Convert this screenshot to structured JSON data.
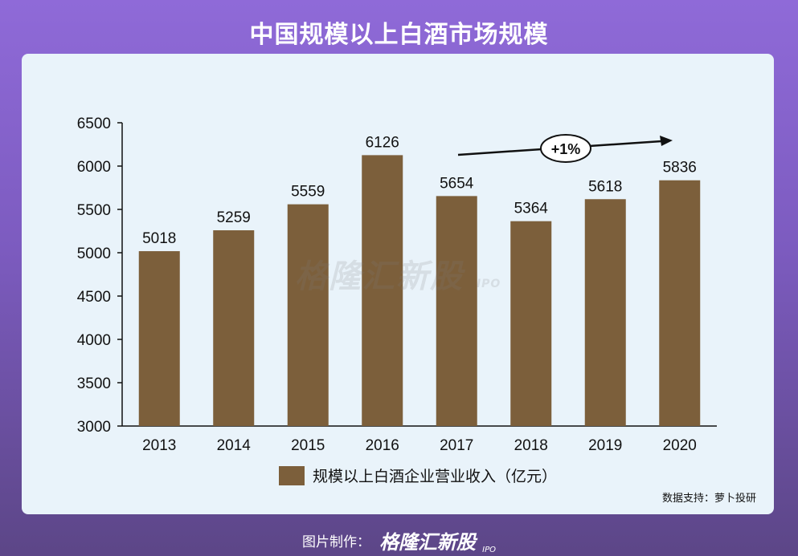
{
  "page": {
    "title": "中国规模以上白酒市场规模",
    "source": "数据支持：萝卜投研",
    "footer_label": "图片制作：",
    "brand": "格隆汇新股",
    "brand_sub": "IPO"
  },
  "chart_data": {
    "type": "bar",
    "categories": [
      "2013",
      "2014",
      "2015",
      "2016",
      "2017",
      "2018",
      "2019",
      "2020"
    ],
    "series": [
      {
        "name": "规模以上白酒企业营业收入（亿元）",
        "values": [
          5018,
          5259,
          5559,
          6126,
          5654,
          5364,
          5618,
          5836
        ]
      }
    ],
    "ylim": [
      3000,
      6500
    ],
    "yticks": [
      3000,
      3500,
      4000,
      4500,
      5000,
      5500,
      6000,
      6500
    ],
    "annotation": "+1%",
    "legend_position": "bottom",
    "grid": false,
    "bar_color": "#7c5f3b"
  }
}
